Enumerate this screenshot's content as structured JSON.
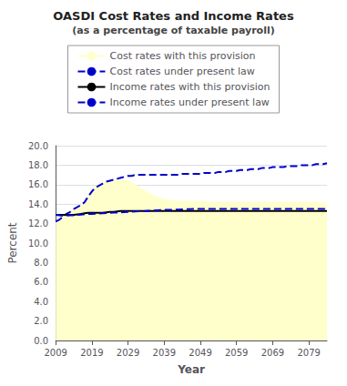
{
  "chart_data": {
    "type": "line",
    "title": "OASDI Cost Rates and Income Rates",
    "subtitle": "(as a percentage of taxable payroll)",
    "xlabel": "Year",
    "ylabel": "Percent",
    "x": [
      2009,
      2010,
      2011,
      2012,
      2013,
      2014,
      2015,
      2016,
      2017,
      2018,
      2019,
      2020,
      2021,
      2022,
      2023,
      2024,
      2025,
      2026,
      2027,
      2028,
      2029,
      2030,
      2031,
      2032,
      2033,
      2034,
      2035,
      2036,
      2037,
      2038,
      2039,
      2040,
      2041,
      2042,
      2043,
      2044,
      2045,
      2046,
      2047,
      2048,
      2049,
      2050,
      2051,
      2052,
      2053,
      2054,
      2055,
      2056,
      2057,
      2058,
      2059,
      2060,
      2061,
      2062,
      2063,
      2064,
      2065,
      2066,
      2067,
      2068,
      2069,
      2070,
      2071,
      2072,
      2073,
      2074,
      2075,
      2076,
      2077,
      2078,
      2079,
      2080,
      2081,
      2082,
      2083,
      2084
    ],
    "series": [
      {
        "name": "Cost rates with this provision",
        "type": "area",
        "color": "#ffffcc",
        "line_style": "solid",
        "values": [
          12.2,
          12.4,
          12.7,
          13.0,
          13.2,
          13.5,
          13.7,
          13.9,
          14.2,
          14.8,
          15.3,
          15.7,
          15.9,
          16.1,
          16.3,
          16.4,
          16.5,
          16.5,
          16.4,
          16.4,
          16.4,
          16.2,
          16.0,
          15.8,
          15.5,
          15.3,
          15.1,
          14.9,
          14.7,
          14.6,
          14.5,
          14.4,
          14.4,
          14.3,
          14.3,
          14.3,
          14.3,
          14.3,
          14.3,
          14.3,
          14.3,
          14.3,
          14.2,
          14.2,
          14.2,
          14.2,
          14.2,
          14.2,
          14.2,
          14.2,
          14.2,
          14.2,
          14.2,
          14.2,
          14.2,
          14.2,
          14.2,
          14.2,
          14.2,
          14.2,
          14.2,
          14.2,
          14.2,
          14.2,
          14.2,
          14.2,
          14.2,
          14.2,
          14.2,
          14.2,
          14.2,
          14.2,
          14.2,
          14.1,
          14.1,
          14.1
        ]
      },
      {
        "name": "Cost rates under present law",
        "type": "line",
        "color": "#0000cc",
        "line_style": "dashed",
        "values": [
          12.2,
          12.4,
          12.7,
          13.0,
          13.2,
          13.5,
          13.7,
          13.9,
          14.2,
          14.8,
          15.3,
          15.7,
          15.9,
          16.1,
          16.3,
          16.4,
          16.5,
          16.6,
          16.7,
          16.8,
          16.9,
          16.9,
          17.0,
          17.0,
          17.0,
          17.0,
          17.0,
          17.0,
          17.0,
          17.0,
          17.0,
          17.0,
          17.0,
          17.0,
          17.0,
          17.1,
          17.1,
          17.1,
          17.1,
          17.1,
          17.1,
          17.2,
          17.2,
          17.2,
          17.2,
          17.3,
          17.3,
          17.3,
          17.4,
          17.4,
          17.4,
          17.5,
          17.5,
          17.5,
          17.6,
          17.6,
          17.6,
          17.7,
          17.7,
          17.7,
          17.8,
          17.8,
          17.8,
          17.8,
          17.9,
          17.9,
          17.9,
          17.9,
          18.0,
          18.0,
          18.0,
          18.0,
          18.1,
          18.1,
          18.1,
          18.2
        ]
      },
      {
        "name": "Income rates with this provision",
        "type": "line",
        "color": "#000000",
        "line_style": "solid",
        "values": [
          12.9,
          12.9,
          12.9,
          12.9,
          12.9,
          12.9,
          12.95,
          13.0,
          13.05,
          13.1,
          13.1,
          13.1,
          13.1,
          13.1,
          13.15,
          13.2,
          13.2,
          13.25,
          13.3,
          13.3,
          13.3,
          13.3,
          13.3,
          13.3,
          13.3,
          13.3,
          13.3,
          13.3,
          13.3,
          13.3,
          13.3,
          13.3,
          13.3,
          13.3,
          13.3,
          13.3,
          13.3,
          13.3,
          13.3,
          13.3,
          13.3,
          13.3,
          13.3,
          13.3,
          13.3,
          13.3,
          13.3,
          13.3,
          13.3,
          13.3,
          13.3,
          13.3,
          13.3,
          13.3,
          13.3,
          13.3,
          13.3,
          13.3,
          13.3,
          13.3,
          13.3,
          13.3,
          13.3,
          13.3,
          13.3,
          13.3,
          13.3,
          13.3,
          13.3,
          13.3,
          13.3,
          13.3,
          13.3,
          13.3,
          13.3,
          13.3
        ]
      },
      {
        "name": "Income rates under present law",
        "type": "line",
        "color": "#0000cc",
        "line_style": "dashed",
        "values": [
          12.9,
          12.85,
          12.8,
          12.82,
          12.84,
          12.86,
          12.9,
          12.93,
          12.97,
          13.0,
          13.0,
          13.02,
          13.04,
          13.06,
          13.08,
          13.1,
          13.12,
          13.14,
          13.16,
          13.18,
          13.2,
          13.22,
          13.24,
          13.26,
          13.28,
          13.3,
          13.32,
          13.34,
          13.36,
          13.38,
          13.4,
          13.4,
          13.4,
          13.42,
          13.44,
          13.46,
          13.48,
          13.48,
          13.5,
          13.5,
          13.5,
          13.5,
          13.5,
          13.5,
          13.5,
          13.5,
          13.5,
          13.5,
          13.5,
          13.5,
          13.5,
          13.5,
          13.5,
          13.5,
          13.5,
          13.5,
          13.5,
          13.5,
          13.5,
          13.5,
          13.5,
          13.5,
          13.5,
          13.5,
          13.5,
          13.5,
          13.5,
          13.5,
          13.5,
          13.5,
          13.5,
          13.5,
          13.5,
          13.5,
          13.5,
          13.5
        ]
      }
    ],
    "xlim": [
      2009,
      2084
    ],
    "xticks": [
      2009,
      2019,
      2029,
      2039,
      2049,
      2059,
      2069,
      2079
    ],
    "ylim": [
      0.0,
      20.0
    ],
    "yticks": [
      {
        "value": 0.0,
        "label": "0.0"
      },
      {
        "value": 2.0,
        "label": "2.0"
      },
      {
        "value": 4.0,
        "label": "4.0"
      },
      {
        "value": 6.0,
        "label": "6.0"
      },
      {
        "value": 8.0,
        "label": "8.0"
      },
      {
        "value": 10.0,
        "label": "10.0"
      },
      {
        "value": 12.0,
        "label": "12.0"
      },
      {
        "value": 14.0,
        "label": "14.0"
      },
      {
        "value": 16.0,
        "label": "16.0"
      },
      {
        "value": 18.0,
        "label": "18.0"
      },
      {
        "value": 20.0,
        "label": "20.0"
      }
    ],
    "grid": "y",
    "legend": "top"
  }
}
